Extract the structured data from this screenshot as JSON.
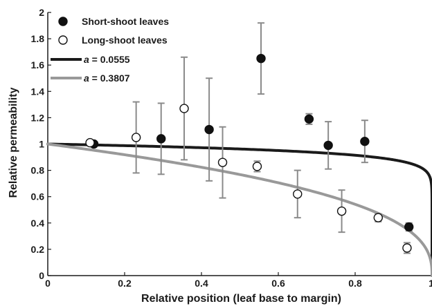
{
  "chart_data": {
    "type": "scatter",
    "xlabel": "Relative position (leaf base to margin)",
    "ylabel": "Relative permeability",
    "xlim": [
      0,
      1
    ],
    "ylim": [
      0,
      2
    ],
    "x_ticks": [
      0,
      0.2,
      0.4,
      0.6,
      0.8,
      1
    ],
    "x_tick_labels": [
      "0",
      "0.2",
      "0.4",
      "0.6",
      "0.8",
      "1"
    ],
    "y_ticks": [
      0,
      0.2,
      0.4,
      0.6,
      0.8,
      1,
      1.2,
      1.4,
      1.6,
      1.8,
      2
    ],
    "y_tick_labels": [
      "0",
      "0.2",
      "0.4",
      "0.6",
      "0.8",
      "1",
      "1.2",
      "1.4",
      "1.6",
      "1.8",
      "2"
    ],
    "grid": false,
    "legend_position": "top-left",
    "series": [
      {
        "name": "Short-shoot leaves",
        "kind": "points",
        "marker": "filled-circle",
        "color": "#111111",
        "points": [
          {
            "x": 0.12,
            "y": 1.0,
            "err": 0.0
          },
          {
            "x": 0.295,
            "y": 1.04,
            "err": 0.27
          },
          {
            "x": 0.42,
            "y": 1.11,
            "err": 0.39
          },
          {
            "x": 0.555,
            "y": 1.65,
            "err": 0.27
          },
          {
            "x": 0.68,
            "y": 1.19,
            "err": 0.04
          },
          {
            "x": 0.73,
            "y": 0.99,
            "err": 0.18
          },
          {
            "x": 0.825,
            "y": 1.02,
            "err": 0.16
          },
          {
            "x": 0.94,
            "y": 0.37,
            "err": 0.03
          }
        ]
      },
      {
        "name": "Long-shoot leaves",
        "kind": "points",
        "marker": "open-circle",
        "color": "#111111",
        "points": [
          {
            "x": 0.11,
            "y": 1.01,
            "err": 0.0
          },
          {
            "x": 0.23,
            "y": 1.05,
            "err": 0.27
          },
          {
            "x": 0.355,
            "y": 1.27,
            "err": 0.39
          },
          {
            "x": 0.455,
            "y": 0.86,
            "err": 0.27
          },
          {
            "x": 0.545,
            "y": 0.83,
            "err": 0.04
          },
          {
            "x": 0.65,
            "y": 0.62,
            "err": 0.18
          },
          {
            "x": 0.765,
            "y": 0.49,
            "err": 0.16
          },
          {
            "x": 0.86,
            "y": 0.44,
            "err": 0.03
          },
          {
            "x": 0.935,
            "y": 0.21,
            "err": 0.04
          }
        ]
      },
      {
        "name": "a = 0.0555",
        "label_prefix": "a",
        "label_value": " = 0.0555",
        "kind": "curve",
        "a": 0.0555,
        "color": "#1a1a1a"
      },
      {
        "name": "a = 0.3807",
        "label_prefix": "a",
        "label_value": " = 0.3807",
        "kind": "curve",
        "a": 0.3807,
        "color": "#999999"
      }
    ]
  }
}
